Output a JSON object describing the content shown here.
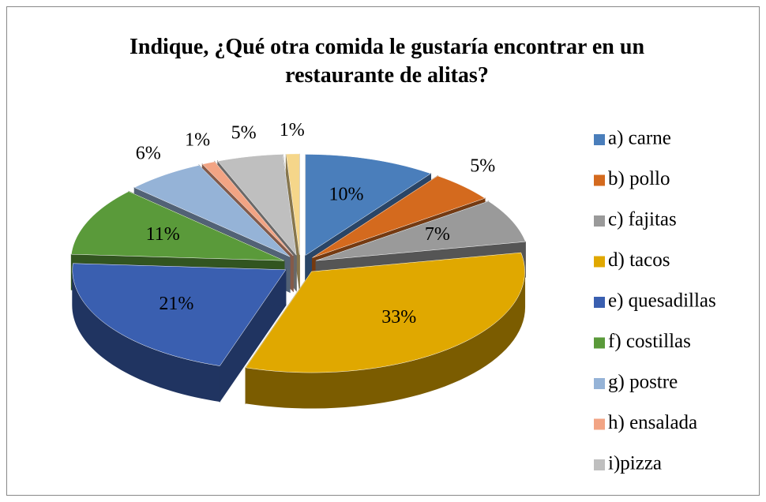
{
  "chart_data": {
    "type": "pie",
    "title": "Indique, ¿Qué otra comida le gustaría encontrar en un restaurante de alitas?",
    "categories": [
      "a) carne",
      "b) pollo",
      "c) fajitas",
      "d) tacos",
      "e) quesadillas",
      "f) costillas",
      "g) postre",
      "h) ensalada",
      "i)pizza",
      null
    ],
    "values": [
      10,
      5,
      7,
      33,
      21,
      11,
      6,
      1,
      5,
      1
    ],
    "value_labels": [
      "10%",
      "5%",
      "7%",
      "33%",
      "21%",
      "11%",
      "6%",
      "1%",
      "5%",
      "1%"
    ],
    "colors": [
      "#4a7ebb",
      "#d46a1e",
      "#9a9a9a",
      "#e0a800",
      "#3a5fb0",
      "#5a9a3a",
      "#95b3d7",
      "#f2a484",
      "#bfbfbf",
      "#f5d68a"
    ],
    "legend": "right"
  }
}
